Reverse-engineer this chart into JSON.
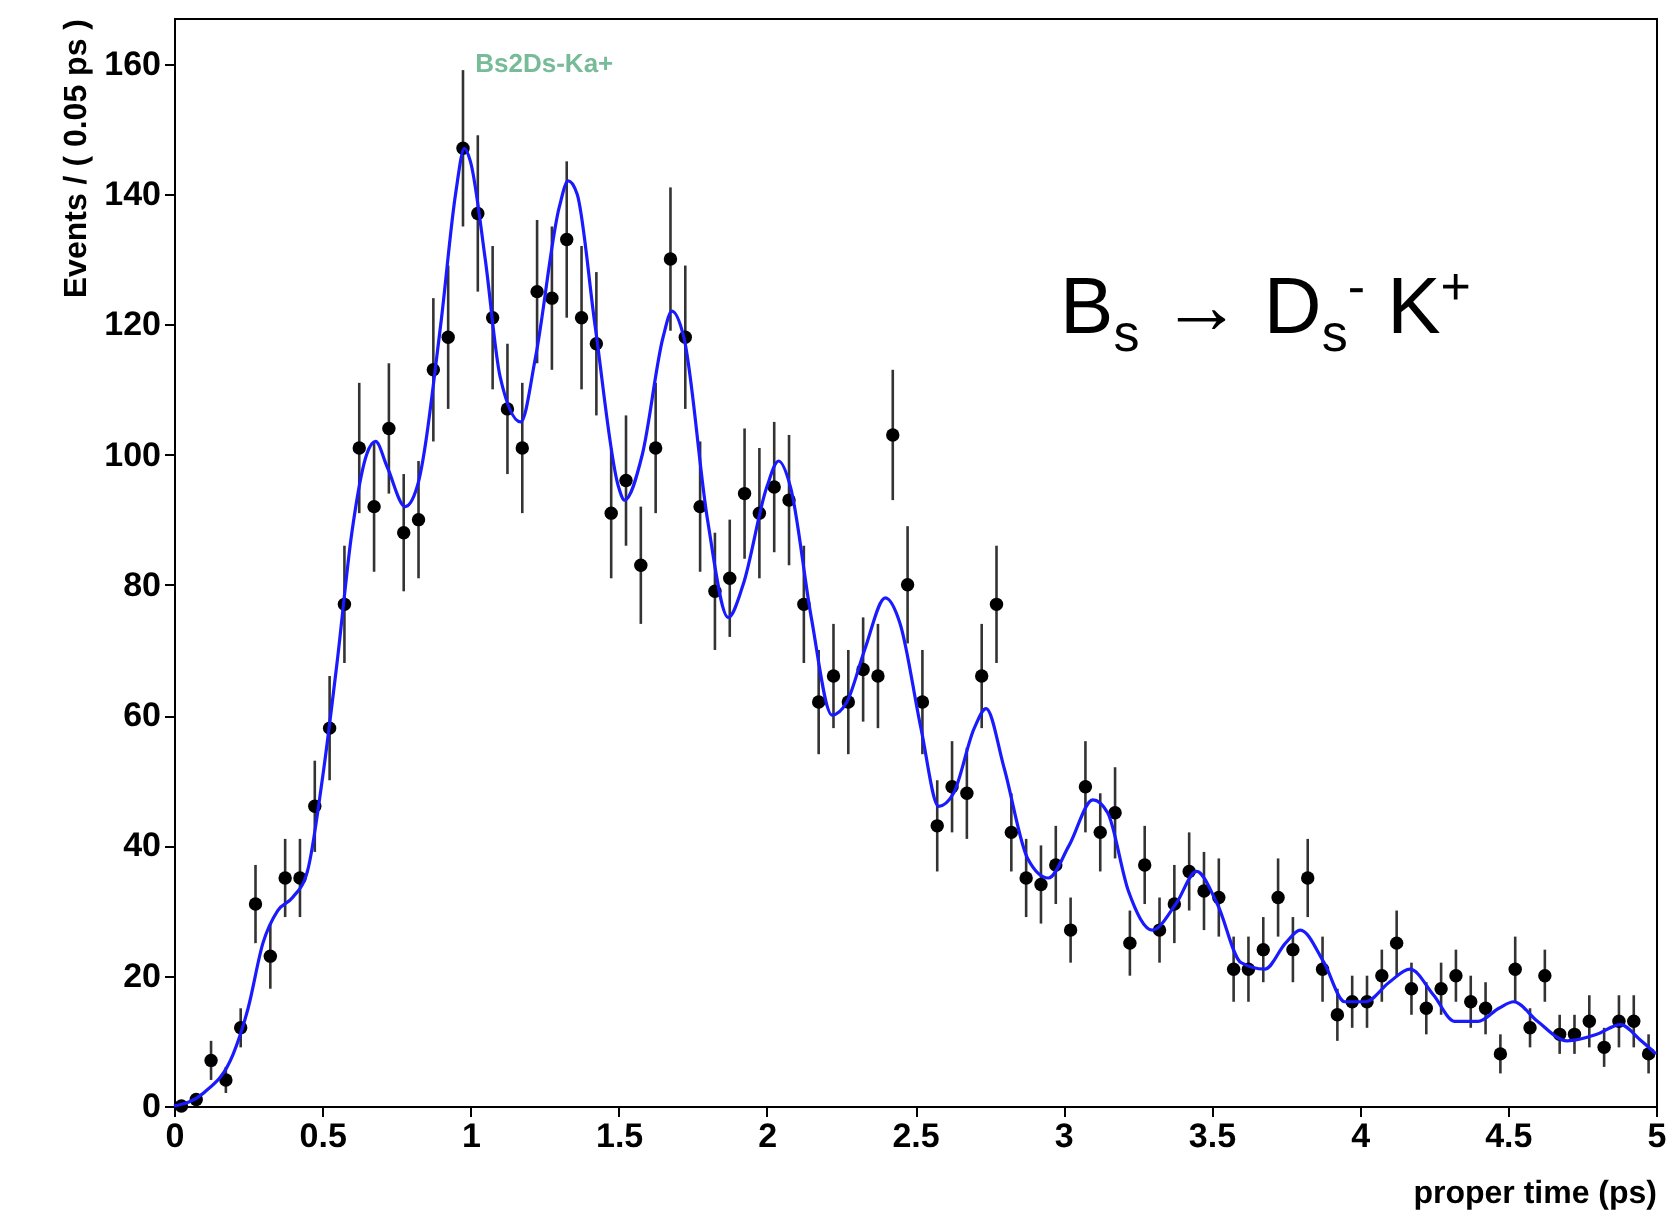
{
  "chart_data": {
    "type": "scatter",
    "title": "Bs2Ds-Ka+",
    "xlabel": "proper time (ps)",
    "ylabel": "Events / ( 0.05 ps )",
    "annotations": [
      "B$_{s}$ → D$_{s}$$^{-}$ K$^{+}$"
    ],
    "xlim": [
      0,
      5
    ],
    "xticks": [
      0,
      0.5,
      1,
      1.5,
      2,
      2.5,
      3,
      3.5,
      4,
      4.5,
      5
    ],
    "ylim": [
      0,
      167
    ],
    "yticks": [
      0,
      20,
      40,
      60,
      80,
      100,
      120,
      140,
      160
    ],
    "marker": "circle",
    "x": [
      0.025,
      0.075,
      0.125,
      0.175,
      0.225,
      0.275,
      0.325,
      0.375,
      0.425,
      0.475,
      0.525,
      0.575,
      0.625,
      0.675,
      0.725,
      0.775,
      0.825,
      0.875,
      0.925,
      0.975,
      1.025,
      1.075,
      1.125,
      1.175,
      1.225,
      1.275,
      1.325,
      1.375,
      1.425,
      1.475,
      1.525,
      1.575,
      1.625,
      1.675,
      1.725,
      1.775,
      1.825,
      1.875,
      1.925,
      1.975,
      2.025,
      2.075,
      2.125,
      2.175,
      2.225,
      2.275,
      2.325,
      2.375,
      2.425,
      2.475,
      2.525,
      2.575,
      2.625,
      2.675,
      2.725,
      2.775,
      2.825,
      2.875,
      2.925,
      2.975,
      3.025,
      3.075,
      3.125,
      3.175,
      3.225,
      3.275,
      3.325,
      3.375,
      3.425,
      3.475,
      3.525,
      3.575,
      3.625,
      3.675,
      3.725,
      3.775,
      3.825,
      3.875,
      3.925,
      3.975,
      4.025,
      4.075,
      4.125,
      4.175,
      4.225,
      4.275,
      4.325,
      4.375,
      4.425,
      4.475,
      4.525,
      4.575,
      4.625,
      4.675,
      4.725,
      4.775,
      4.825,
      4.875,
      4.925,
      4.975
    ],
    "series": [
      {
        "color": "#000000",
        "values": [
          0,
          1,
          7,
          4,
          12,
          31,
          23,
          35,
          35,
          46,
          58,
          77,
          101,
          92,
          104,
          88,
          90,
          113,
          118,
          147,
          137,
          121,
          107,
          101,
          125,
          124,
          133,
          121,
          117,
          91,
          96,
          83,
          101,
          130,
          118,
          92,
          79,
          81,
          94,
          91,
          95,
          93,
          77,
          62,
          66,
          62,
          67,
          66,
          103,
          80,
          62,
          43,
          49,
          48,
          66,
          77,
          42,
          35,
          34,
          37,
          27,
          49,
          42,
          45,
          25,
          37,
          27,
          31,
          36,
          33,
          32,
          21,
          21,
          24,
          32,
          24,
          35,
          21,
          14,
          16,
          16,
          20,
          25,
          18,
          15,
          18,
          20,
          16,
          15,
          8,
          21,
          12,
          20,
          11,
          11,
          13,
          9,
          13,
          13,
          8
        ],
        "errors": [
          null,
          1,
          3,
          2,
          3,
          6,
          5,
          6,
          6,
          7,
          8,
          9,
          10,
          10,
          10,
          9,
          9,
          11,
          11,
          12,
          12,
          11,
          10,
          10,
          11,
          11,
          12,
          11,
          11,
          10,
          10,
          9,
          10,
          11,
          11,
          10,
          9,
          9,
          10,
          10,
          10,
          10,
          9,
          8,
          8,
          8,
          8,
          8,
          10,
          9,
          8,
          7,
          7,
          7,
          8,
          9,
          6,
          6,
          6,
          6,
          5,
          7,
          6,
          7,
          5,
          6,
          5,
          6,
          6,
          6,
          6,
          5,
          5,
          5,
          6,
          5,
          6,
          5,
          4,
          4,
          4,
          4,
          5,
          4,
          4,
          4,
          4,
          4,
          4,
          3,
          5,
          3,
          4,
          3,
          3,
          4,
          3,
          4,
          4,
          3
        ]
      },
      {
        "type": "line",
        "color": "#1a1aff",
        "marker": "none",
        "x": [
          0,
          0.1,
          0.2,
          0.25,
          0.3,
          0.35,
          0.4,
          0.45,
          0.5,
          0.55,
          0.6,
          0.65,
          0.68,
          0.72,
          0.78,
          0.82,
          0.9,
          0.95,
          0.98,
          1.0,
          1.05,
          1.1,
          1.17,
          1.22,
          1.3,
          1.33,
          1.36,
          1.42,
          1.5,
          1.52,
          1.58,
          1.65,
          1.68,
          1.72,
          1.8,
          1.87,
          1.92,
          2.0,
          2.04,
          2.08,
          2.15,
          2.22,
          2.27,
          2.33,
          2.4,
          2.45,
          2.52,
          2.58,
          2.63,
          2.7,
          2.74,
          2.8,
          2.88,
          2.95,
          3.02,
          3.1,
          3.15,
          3.22,
          3.3,
          3.38,
          3.45,
          3.52,
          3.6,
          3.68,
          3.75,
          3.8,
          3.88,
          3.95,
          4.02,
          4.1,
          4.17,
          4.25,
          4.32,
          4.4,
          4.47,
          4.52,
          4.6,
          4.7,
          4.8,
          4.88,
          4.95,
          5.0
        ],
        "values": [
          0,
          2,
          8,
          15,
          25,
          30,
          32,
          36,
          50,
          68,
          88,
          100,
          102,
          98,
          92,
          95,
          120,
          140,
          147,
          145,
          130,
          112,
          105,
          115,
          138,
          142,
          140,
          120,
          95,
          93,
          100,
          118,
          122,
          118,
          90,
          75,
          80,
          95,
          99,
          95,
          75,
          60,
          62,
          70,
          78,
          74,
          58,
          46,
          48,
          58,
          61,
          52,
          38,
          35,
          40,
          47,
          45,
          33,
          27,
          31,
          36,
          31,
          22,
          21,
          25,
          27,
          22,
          16,
          16,
          19,
          21,
          17,
          13,
          13,
          15,
          16,
          13,
          10,
          11,
          12.5,
          10,
          8
        ]
      }
    ]
  }
}
